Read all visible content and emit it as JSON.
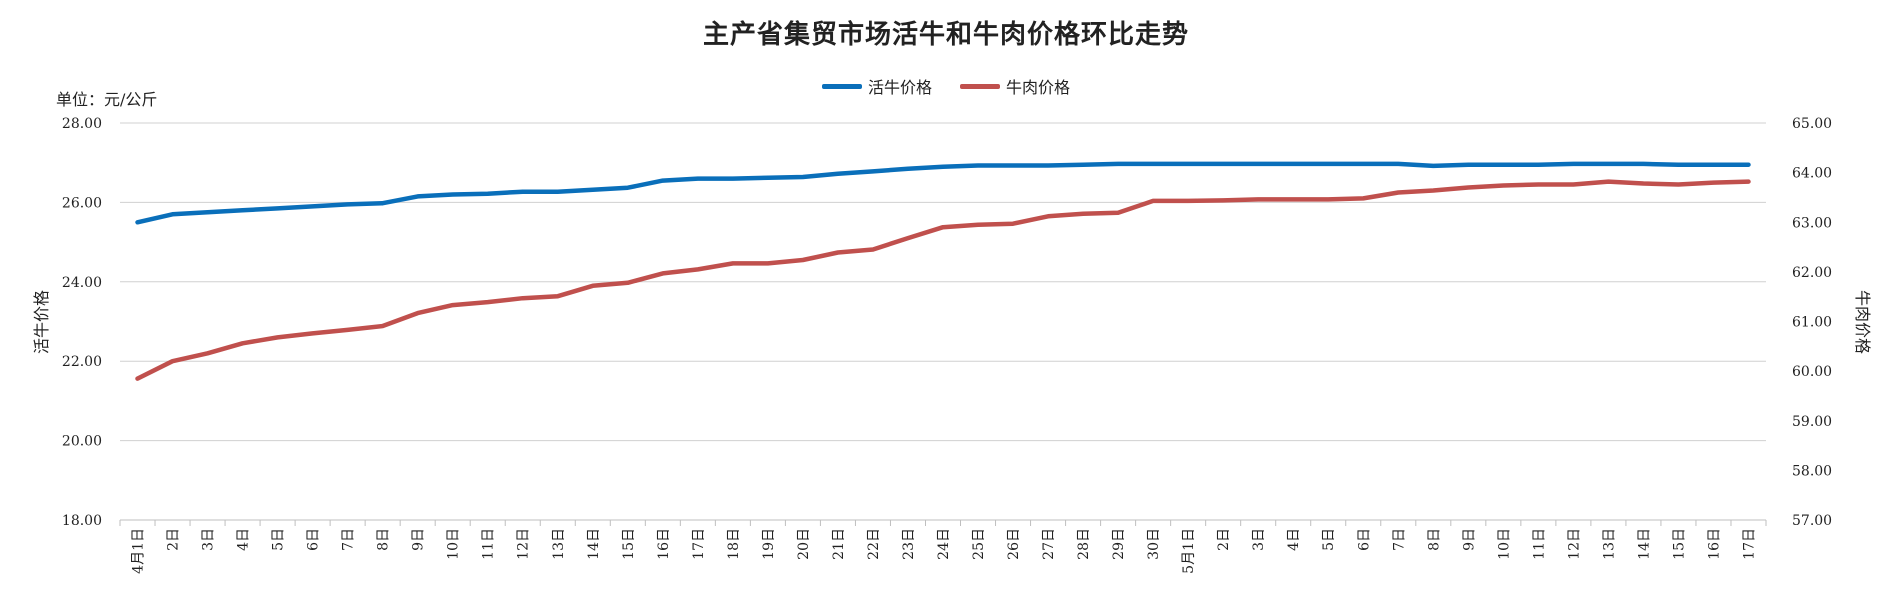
{
  "chart_data": {
    "type": "line",
    "title": "主产省集贸市场活牛和牛肉价格环比走势",
    "unit": "单位：元/公斤",
    "ylabel": "活牛价格",
    "y2label": "牛肉价格",
    "ylim": [
      18,
      28
    ],
    "y2lim": [
      57,
      65
    ],
    "yticks": [
      "18.00",
      "20.00",
      "22.00",
      "24.00",
      "26.00",
      "28.00"
    ],
    "y2ticks": [
      "57.00",
      "58.00",
      "59.00",
      "60.00",
      "61.00",
      "62.00",
      "63.00",
      "64.00",
      "65.00"
    ],
    "grid": true,
    "legend_position": "top",
    "categories": [
      "4月1日",
      "2日",
      "3日",
      "4日",
      "5日",
      "6日",
      "7日",
      "8日",
      "9日",
      "10日",
      "11日",
      "12日",
      "13日",
      "14日",
      "15日",
      "16日",
      "17日",
      "18日",
      "19日",
      "20日",
      "21日",
      "22日",
      "23日",
      "24日",
      "25日",
      "26日",
      "27日",
      "28日",
      "29日",
      "30日",
      "5月1日",
      "2日",
      "3日",
      "4日",
      "5日",
      "6日",
      "7日",
      "8日",
      "9日",
      "10日",
      "11日",
      "12日",
      "13日",
      "14日",
      "15日",
      "16日",
      "17日"
    ],
    "series": [
      {
        "name": "活牛价格",
        "axis": "left",
        "color": "#0a6fba",
        "values": [
          25.5,
          25.7,
          25.75,
          25.8,
          25.85,
          25.9,
          25.95,
          25.98,
          26.15,
          26.2,
          26.22,
          26.27,
          26.27,
          26.32,
          26.37,
          26.55,
          26.6,
          26.6,
          26.62,
          26.64,
          26.72,
          26.78,
          26.85,
          26.9,
          26.93,
          26.93,
          26.93,
          26.95,
          26.97,
          26.97,
          26.97,
          26.97,
          26.97,
          26.97,
          26.97,
          26.97,
          26.97,
          26.92,
          26.95,
          26.95,
          26.95,
          26.97,
          26.97,
          26.97,
          26.95,
          26.95,
          26.95
        ]
      },
      {
        "name": "牛肉价格",
        "axis": "right",
        "color": "#c0504d",
        "values": [
          59.85,
          60.2,
          60.36,
          60.56,
          60.68,
          60.76,
          60.83,
          60.91,
          61.17,
          61.33,
          61.39,
          61.47,
          61.51,
          61.72,
          61.78,
          61.97,
          62.05,
          62.17,
          62.17,
          62.24,
          62.39,
          62.45,
          62.68,
          62.9,
          62.95,
          62.97,
          63.12,
          63.17,
          63.19,
          63.43,
          63.43,
          63.44,
          63.46,
          63.46,
          63.46,
          63.48,
          63.6,
          63.64,
          63.7,
          63.74,
          63.76,
          63.76,
          63.82,
          63.78,
          63.76,
          63.8,
          63.82
        ]
      }
    ]
  }
}
